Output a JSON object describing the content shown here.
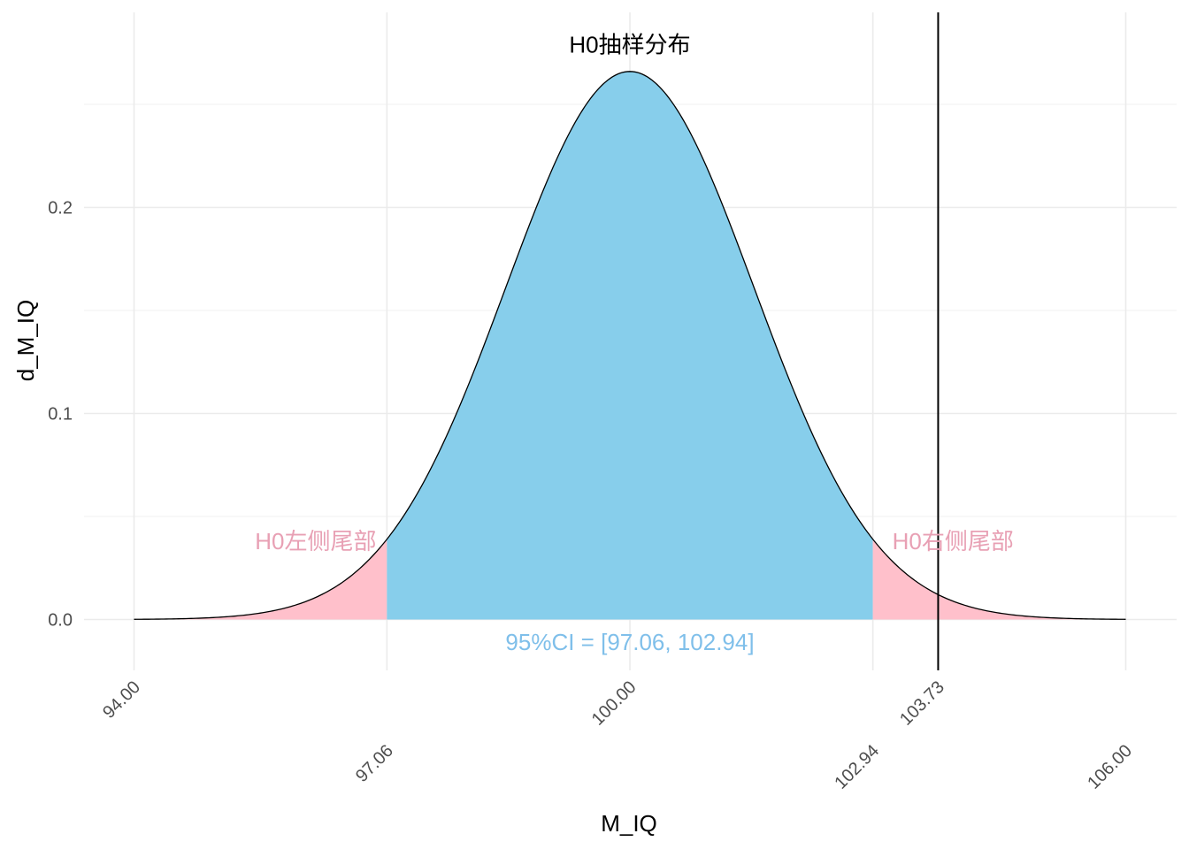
{
  "chart_data": {
    "type": "area",
    "title": "",
    "xlabel": "M_IQ",
    "ylabel": "d_M_IQ",
    "xlim": [
      94,
      106
    ],
    "ylim": [
      -0.024,
      0.29
    ],
    "grid": true,
    "distribution": {
      "name": "normal",
      "mean": 100,
      "sd": 1.5
    },
    "x_ticks": [
      "94.00",
      "97.06",
      "100.00",
      "102.94",
      "103.73",
      "106.00"
    ],
    "x_tick_values": [
      94.0,
      97.06,
      100.0,
      102.94,
      103.73,
      106.0
    ],
    "y_ticks": [
      "0.0",
      "0.1",
      "0.2"
    ],
    "y_tick_values": [
      0.0,
      0.1,
      0.2
    ],
    "regions": [
      {
        "from": 94.0,
        "to": 97.06,
        "color": "#FFC0CB"
      },
      {
        "from": 97.06,
        "to": 102.94,
        "color": "#87CEEB"
      },
      {
        "from": 102.94,
        "to": 106.0,
        "color": "#FFC0CB"
      }
    ],
    "vline": {
      "x": 103.73,
      "color": "#000000"
    },
    "annotations": [
      {
        "text": "H0抽样分布",
        "x": 100.0,
        "y": 0.279,
        "color": "#000000"
      },
      {
        "text": "H0左侧尾部",
        "x": 95.0,
        "y": 0.038,
        "color": "#E8A0B4"
      },
      {
        "text": "H0右侧尾部",
        "x": 102.94,
        "y": 0.038,
        "color": "#E8A0B4"
      },
      {
        "text": "95%CI = [97.06, 102.94]",
        "x": 100.0,
        "y": -0.011,
        "color": "#7FBFEA"
      }
    ]
  }
}
